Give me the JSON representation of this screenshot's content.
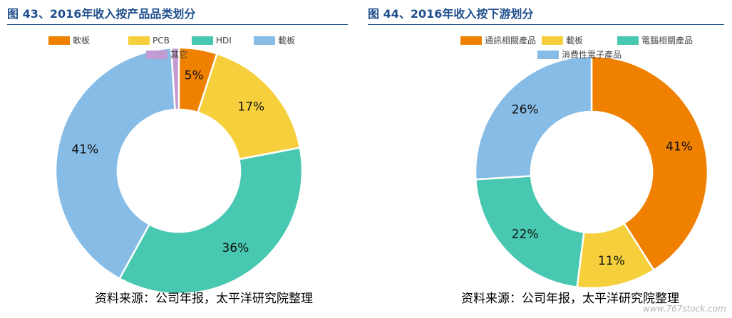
{
  "figures": [
    {
      "title": "图 43、2016年收入按产品品类划分",
      "source": "资料来源：公司年报，太平洋研究院整理"
    },
    {
      "title": "图 44、2016年收入按下游划分",
      "source": "资料来源：公司年报，太平洋研究院整理"
    }
  ],
  "watermark": "www.767stock.com",
  "chart_data": [
    {
      "type": "pie",
      "subtype": "donut",
      "title": "图 43、2016年收入按产品品类划分",
      "legend_position": "top",
      "categories": [
        "軟板",
        "PCB",
        "HDI",
        "載板",
        "其它"
      ],
      "values": [
        5,
        17,
        36,
        41,
        1
      ],
      "labels": [
        "5%",
        "17%",
        "36%",
        "41%",
        ""
      ],
      "colors": [
        "#f08000",
        "#f5d03c",
        "#48c8b0",
        "#86bce6",
        "#c39bd3"
      ]
    },
    {
      "type": "pie",
      "subtype": "donut",
      "title": "图 44、2016年收入按下游划分",
      "legend_position": "top",
      "categories": [
        "通訊相關產品",
        "載板",
        "電腦相關產品",
        "消費性電子產品"
      ],
      "values": [
        41,
        11,
        22,
        26
      ],
      "labels": [
        "41%",
        "11%",
        "22%",
        "26%"
      ],
      "colors": [
        "#f08000",
        "#f5d03c",
        "#48c8b0",
        "#86bce6"
      ]
    }
  ]
}
